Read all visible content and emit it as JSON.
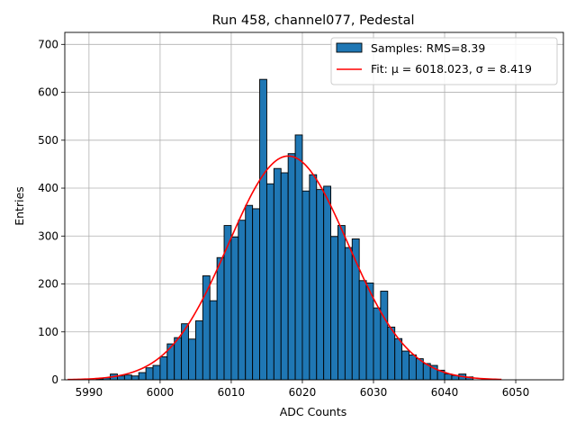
{
  "chart_data": {
    "type": "bar",
    "title": "Run 458, channel077, Pedestal",
    "xlabel": "ADC Counts",
    "ylabel": "Entries",
    "xlim": [
      5986.6,
      6056.7
    ],
    "ylim": [
      0,
      725
    ],
    "xticks": [
      5990,
      6000,
      6010,
      6020,
      6030,
      6040,
      6050
    ],
    "yticks": [
      0,
      100,
      200,
      300,
      400,
      500,
      600,
      700
    ],
    "grid": true,
    "legend_position": "top-right",
    "colors": {
      "bar_fill": "#1f77b4",
      "bar_edge": "#000000",
      "fit_line": "#ff0000",
      "grid": "#b0b0b0"
    },
    "histogram": {
      "name": "Samples: RMS=8.39",
      "bin_start": 5991,
      "bin_width": 1,
      "counts": [
        2,
        4,
        12,
        8,
        10,
        8,
        15,
        25,
        30,
        48,
        75,
        88,
        117,
        85,
        123,
        217,
        165,
        255,
        322,
        298,
        333,
        364,
        357,
        627,
        409,
        441,
        432,
        472,
        511,
        394,
        428,
        397,
        404,
        299,
        322,
        276,
        294,
        207,
        202,
        150,
        185,
        110,
        86,
        60,
        52,
        44,
        34,
        30,
        20,
        12,
        9,
        12,
        6
      ]
    },
    "fit": {
      "name": "Fit: μ = 6018.023, σ = 8.419",
      "mu": 6018.023,
      "sigma": 8.419,
      "amplitude": 467,
      "x_range": [
        5987,
        6048
      ]
    }
  }
}
